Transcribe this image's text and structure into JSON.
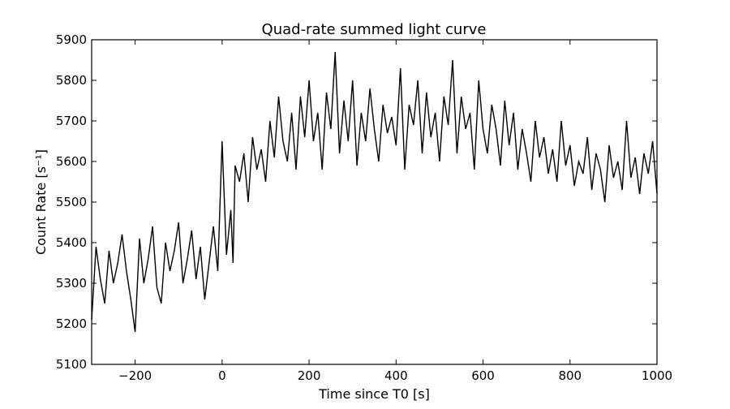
{
  "chart_data": {
    "type": "line",
    "title": "Quad-rate summed light curve",
    "xlabel": "Time since T0 [s]",
    "ylabel": "Count Rate [s⁻¹]",
    "xlim": [
      -300,
      1000
    ],
    "ylim": [
      5100,
      5900
    ],
    "xticks": [
      -200,
      0,
      200,
      400,
      600,
      800,
      1000
    ],
    "xtick_labels": [
      "−200",
      "0",
      "200",
      "400",
      "600",
      "800",
      "1000"
    ],
    "yticks": [
      5100,
      5200,
      5300,
      5400,
      5500,
      5600,
      5700,
      5800,
      5900
    ],
    "ytick_labels": [
      "5100",
      "5200",
      "5300",
      "5400",
      "5500",
      "5600",
      "5700",
      "5800",
      "5900"
    ],
    "grid": false,
    "line_color": "#000000",
    "series": [
      {
        "x": [
          -300,
          -290,
          -280,
          -270,
          -260,
          -250,
          -240,
          -230,
          -220,
          -210,
          -200,
          -190,
          -180,
          -170,
          -160,
          -150,
          -140,
          -130,
          -120,
          -110,
          -100,
          -90,
          -80,
          -70,
          -60,
          -50,
          -40,
          -30,
          -20,
          -10,
          0,
          10,
          20,
          25,
          30,
          40,
          50,
          60,
          70,
          80,
          90,
          100,
          110,
          120,
          130,
          140,
          150,
          160,
          170,
          180,
          190,
          200,
          210,
          220,
          230,
          240,
          250,
          260,
          270,
          280,
          290,
          300,
          310,
          320,
          330,
          340,
          350,
          360,
          370,
          380,
          390,
          400,
          410,
          420,
          430,
          440,
          450,
          460,
          470,
          480,
          490,
          500,
          510,
          520,
          530,
          540,
          550,
          560,
          570,
          580,
          590,
          600,
          610,
          620,
          630,
          640,
          650,
          660,
          670,
          680,
          690,
          700,
          710,
          720,
          730,
          740,
          750,
          760,
          770,
          780,
          790,
          800,
          810,
          820,
          830,
          840,
          850,
          860,
          870,
          880,
          890,
          900,
          910,
          920,
          930,
          940,
          950,
          960,
          970,
          980,
          990,
          1000
        ],
        "values": [
          5210,
          5390,
          5310,
          5250,
          5380,
          5300,
          5350,
          5420,
          5330,
          5260,
          5180,
          5410,
          5300,
          5360,
          5440,
          5290,
          5250,
          5400,
          5330,
          5380,
          5450,
          5300,
          5360,
          5430,
          5310,
          5390,
          5260,
          5350,
          5440,
          5330,
          5650,
          5370,
          5480,
          5350,
          5590,
          5550,
          5620,
          5500,
          5660,
          5580,
          5630,
          5550,
          5700,
          5610,
          5760,
          5650,
          5600,
          5720,
          5580,
          5760,
          5660,
          5800,
          5650,
          5720,
          5580,
          5770,
          5680,
          5870,
          5620,
          5750,
          5650,
          5800,
          5590,
          5720,
          5650,
          5780,
          5680,
          5600,
          5740,
          5670,
          5710,
          5640,
          5830,
          5580,
          5740,
          5690,
          5800,
          5620,
          5770,
          5660,
          5720,
          5600,
          5760,
          5690,
          5850,
          5620,
          5760,
          5680,
          5720,
          5580,
          5800,
          5680,
          5620,
          5740,
          5680,
          5590,
          5750,
          5640,
          5720,
          5580,
          5680,
          5620,
          5550,
          5700,
          5610,
          5660,
          5570,
          5630,
          5550,
          5700,
          5590,
          5640,
          5540,
          5600,
          5570,
          5660,
          5530,
          5620,
          5580,
          5500,
          5640,
          5560,
          5600,
          5530,
          5700,
          5560,
          5610,
          5520,
          5620,
          5570,
          5650,
          5520
        ]
      }
    ]
  }
}
